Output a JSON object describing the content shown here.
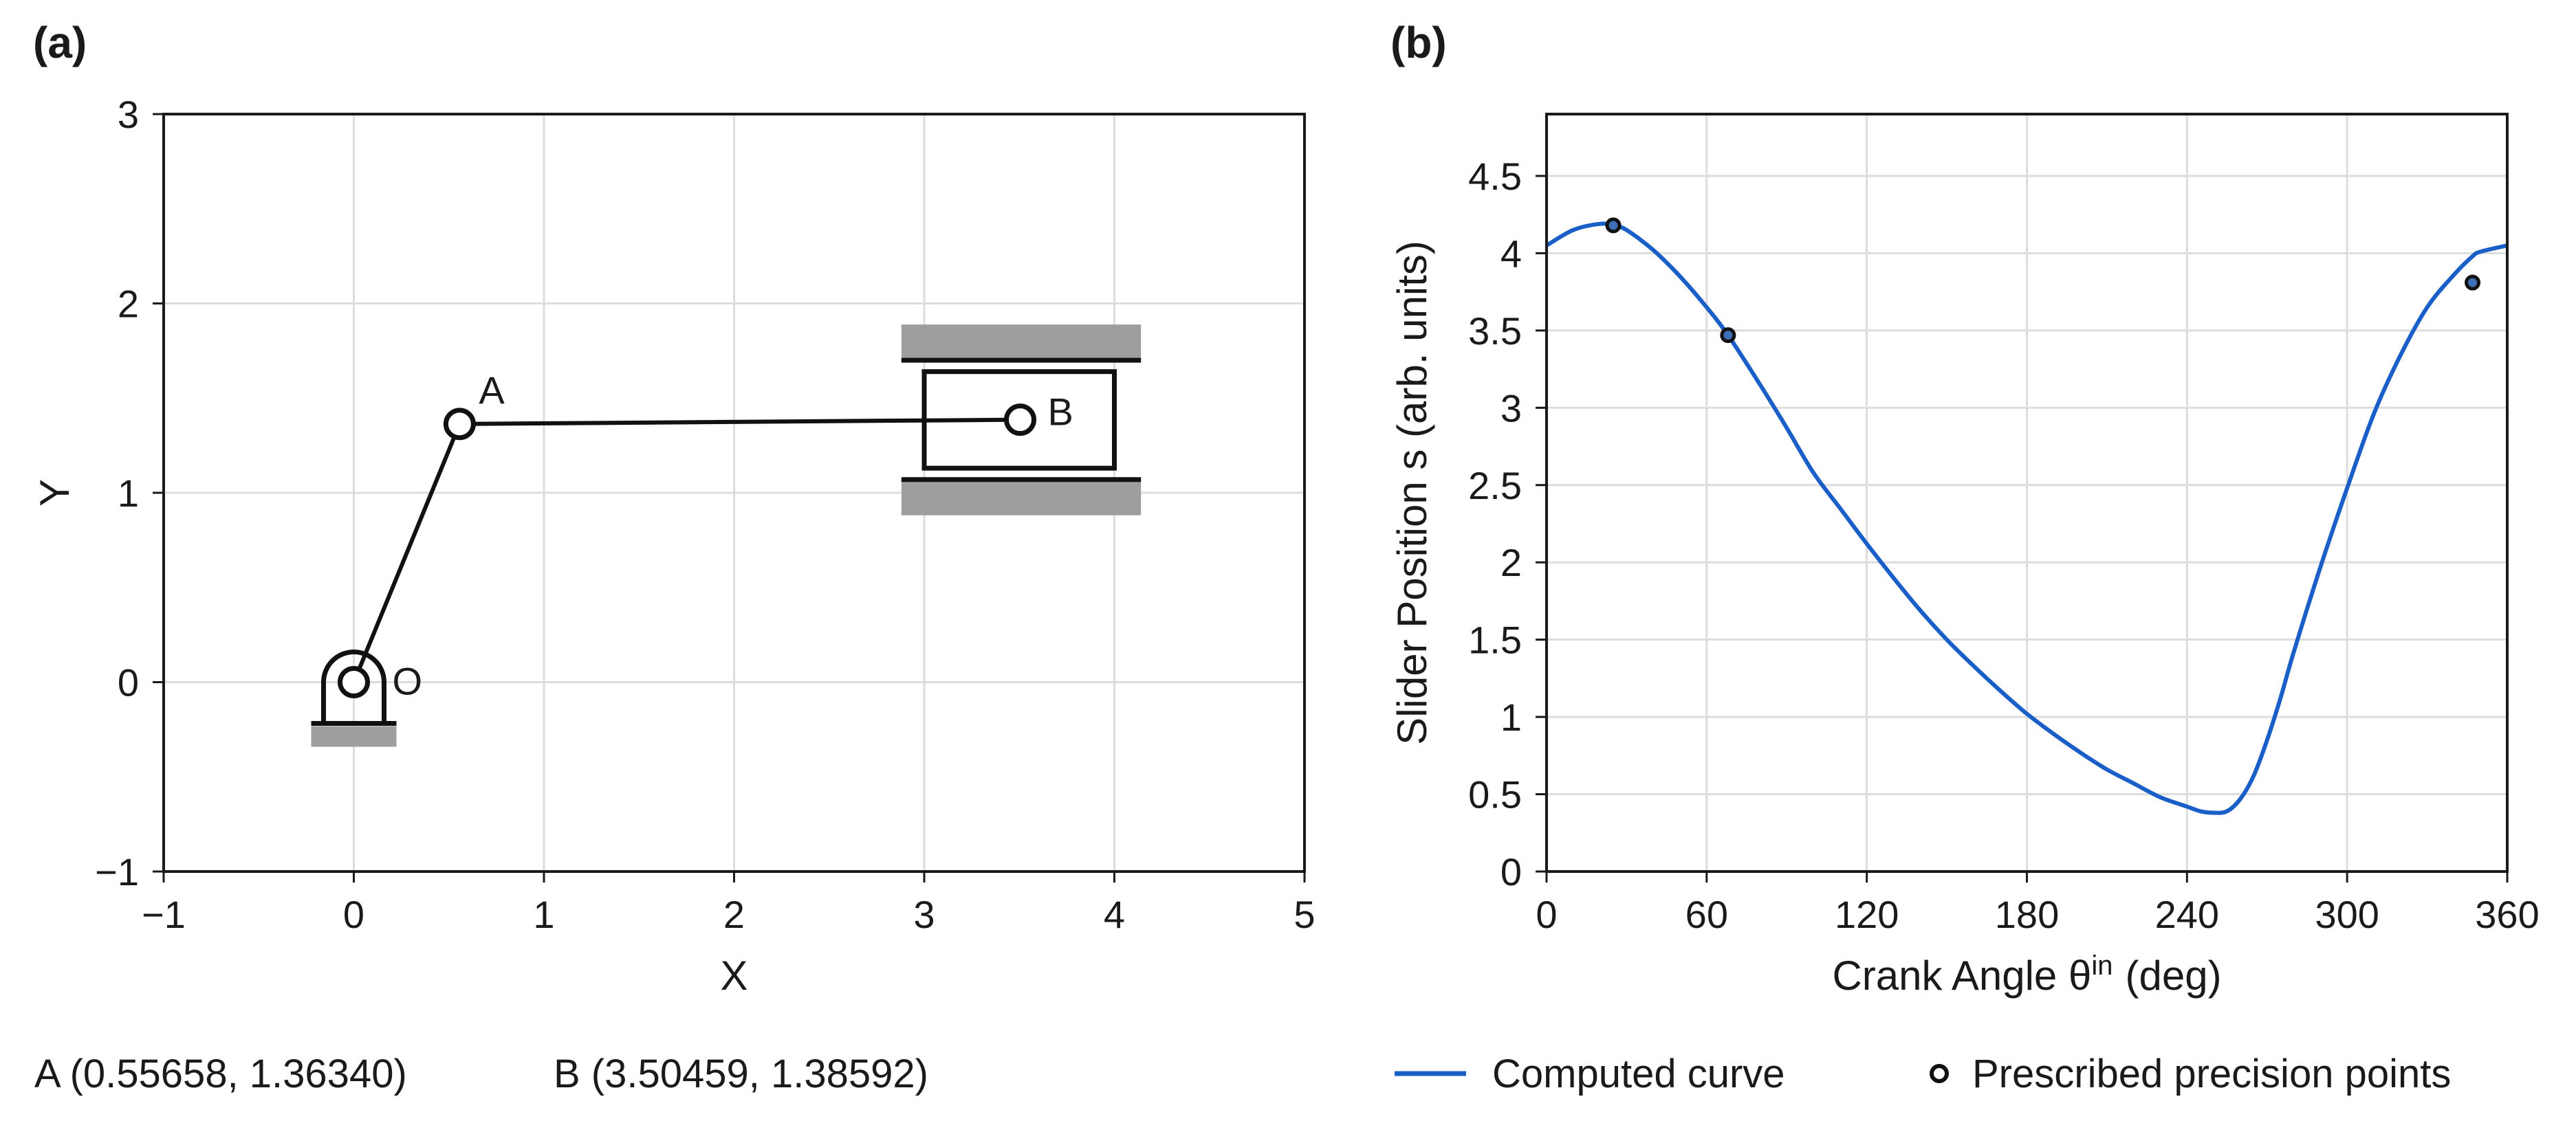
{
  "panels": {
    "a": "(a)",
    "b": "(b)"
  },
  "annotation": {
    "A": "A (0.55658, 1.36340)",
    "B": "B (3.50459, 1.38592)"
  },
  "chart_data": [
    {
      "type": "mechanism",
      "title": "",
      "xlabel": "X",
      "ylabel": "Y",
      "xlim": [
        -1,
        5
      ],
      "ylim": [
        -1,
        3
      ],
      "xticks": [
        -1,
        0,
        1,
        2,
        3,
        4,
        5
      ],
      "yticks": [
        -1,
        0,
        1,
        2,
        3
      ],
      "xtick_labels": [
        "−1",
        "0",
        "1",
        "2",
        "3",
        "4",
        "5"
      ],
      "ytick_labels": [
        "−1",
        "0",
        "1",
        "2",
        "3"
      ],
      "grid": true,
      "points": [
        {
          "name": "O",
          "x": 0,
          "y": 0
        },
        {
          "name": "A",
          "x": 0.55658,
          "y": 1.3634
        },
        {
          "name": "B",
          "x": 3.50459,
          "y": 1.38592
        }
      ],
      "links": [
        [
          "O",
          "A"
        ],
        [
          "A",
          "B"
        ]
      ],
      "slider_guides_y": [
        1.07,
        1.7
      ],
      "slider_block": {
        "x_range": [
          3.0,
          4.0
        ],
        "y_range": [
          1.13,
          1.64
        ]
      },
      "slider_guide_x_range": [
        2.88,
        4.14
      ]
    },
    {
      "type": "line",
      "xlabel": "Crank Angle θ",
      "xlabel_sup": "in",
      "xlabel_unit": "(deg)",
      "ylabel": "Slider Position s (arb. units)",
      "xlim": [
        0,
        360
      ],
      "ylim": [
        0,
        4.9
      ],
      "xticks": [
        0,
        60,
        120,
        180,
        240,
        300,
        360
      ],
      "yticks": [
        0,
        0.5,
        1,
        1.5,
        2,
        2.5,
        3,
        3.5,
        4,
        4.5
      ],
      "ytick_labels": [
        "0",
        "0.5",
        "1",
        "1.5",
        "2",
        "2.5",
        "3",
        "3.5",
        "4",
        "4.5"
      ],
      "grid": true,
      "series": [
        {
          "name": "Computed curve",
          "color": "#1a5fc8",
          "x": [
            0,
            10,
            20,
            25,
            30,
            40,
            50,
            60,
            68,
            80,
            90,
            100,
            110,
            120,
            130,
            140,
            150,
            160,
            170,
            180,
            190,
            200,
            210,
            220,
            230,
            240,
            245,
            250,
            255,
            260,
            265,
            270,
            275,
            280,
            290,
            300,
            310,
            320,
            330,
            340,
            347,
            350,
            360
          ],
          "y": [
            4.05,
            4.15,
            4.19,
            4.18,
            4.15,
            4.02,
            3.85,
            3.65,
            3.47,
            3.15,
            2.87,
            2.58,
            2.35,
            2.12,
            1.9,
            1.69,
            1.5,
            1.33,
            1.17,
            1.02,
            0.89,
            0.77,
            0.66,
            0.57,
            0.48,
            0.42,
            0.39,
            0.38,
            0.39,
            0.47,
            0.62,
            0.85,
            1.12,
            1.42,
            1.97,
            2.48,
            2.96,
            3.34,
            3.65,
            3.86,
            3.98,
            4.01,
            4.05
          ]
        }
      ],
      "precision_points": {
        "name": "Prescribed precision points",
        "x": [
          25,
          68,
          347
        ],
        "y": [
          4.18,
          3.47,
          3.81
        ]
      },
      "legend": [
        "Computed curve",
        "Prescribed precision points"
      ],
      "legend_position": "bottom"
    }
  ]
}
